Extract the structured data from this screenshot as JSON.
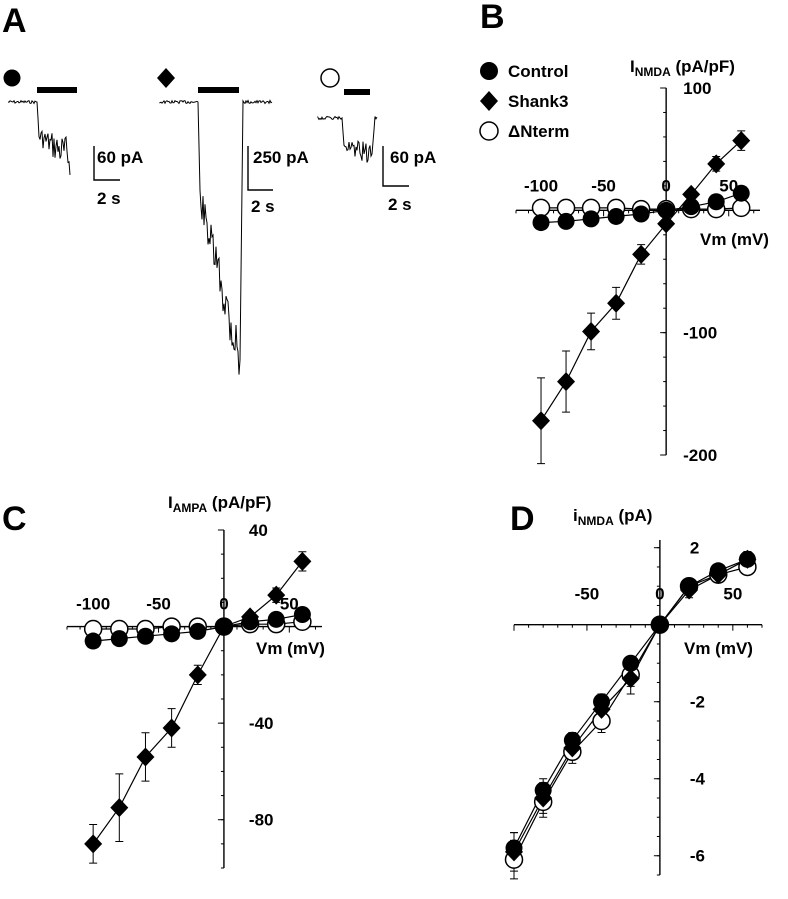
{
  "panels": {
    "A": "A",
    "B": "B",
    "C": "C",
    "D": "D"
  },
  "traces": [
    {
      "marker": "circle",
      "scale_current": "60 pA",
      "scale_time": "2 s",
      "current_amplitude": 60
    },
    {
      "marker": "diamond",
      "scale_current": "250 pA",
      "scale_time": "2 s",
      "current_amplitude": 250
    },
    {
      "marker": "open-circle",
      "scale_current": "60 pA",
      "scale_time": "2 s",
      "current_amplitude": 60
    }
  ],
  "legend": [
    {
      "label": "Control",
      "marker": "filled-circle"
    },
    {
      "label": "Shank3",
      "marker": "filled-diamond"
    },
    {
      "label": "ΔNterm",
      "marker": "open-circle"
    }
  ],
  "chart_data": [
    {
      "panel": "B",
      "type": "scatter",
      "ylabel_main": "I",
      "ylabel_sub": "NMDA",
      "ylabel_unit": "(pA/pF)",
      "xlabel": "Vm (mV)",
      "x_ticks": [
        "-100",
        "-50",
        "0",
        "50"
      ],
      "y_ticks": [
        "100",
        "-100",
        "-200"
      ],
      "xlim": [
        -120,
        75
      ],
      "ylim": [
        -200,
        100
      ],
      "series": [
        {
          "name": "Control",
          "marker": "filled-circle",
          "x": [
            -100,
            -80,
            -60,
            -40,
            -20,
            0,
            20,
            40,
            60
          ],
          "y": [
            -10,
            -9,
            -7,
            -5,
            -3,
            0,
            3,
            7,
            14
          ],
          "err": [
            2,
            2,
            2,
            2,
            1,
            1,
            1,
            2,
            3
          ]
        },
        {
          "name": "Shank3",
          "marker": "filled-diamond",
          "x": [
            -100,
            -80,
            -60,
            -40,
            -20,
            0,
            20,
            40,
            60
          ],
          "y": [
            -172,
            -140,
            -99,
            -76,
            -36,
            -11,
            13,
            38,
            57
          ],
          "err": [
            35,
            25,
            15,
            13,
            8,
            3,
            4,
            6,
            8
          ]
        },
        {
          "name": "ΔNterm",
          "marker": "open-circle",
          "x": [
            -100,
            -80,
            -60,
            -40,
            -20,
            0,
            20,
            40,
            60
          ],
          "y": [
            2,
            2,
            2,
            2,
            1,
            1,
            1,
            1,
            2
          ],
          "err": [
            1,
            1,
            1,
            1,
            1,
            1,
            1,
            1,
            1
          ]
        }
      ]
    },
    {
      "panel": "C",
      "type": "scatter",
      "ylabel_main": "I",
      "ylabel_sub": "AMPA",
      "ylabel_unit": "(pA/pF)",
      "xlabel": "Vm (mV)",
      "x_ticks": [
        "-100",
        "-50",
        "0",
        "50"
      ],
      "y_ticks": [
        "40",
        "-40",
        "-80"
      ],
      "xlim": [
        -120,
        75
      ],
      "ylim": [
        -100,
        40
      ],
      "series": [
        {
          "name": "Control",
          "marker": "filled-circle",
          "x": [
            -100,
            -80,
            -60,
            -40,
            -20,
            0,
            20,
            40,
            60
          ],
          "y": [
            -6,
            -5,
            -4,
            -3,
            -2,
            0,
            2,
            3,
            5
          ],
          "err": [
            1,
            1,
            1,
            1,
            1,
            1,
            1,
            1,
            1
          ]
        },
        {
          "name": "Shank3",
          "marker": "filled-diamond",
          "x": [
            -100,
            -80,
            -60,
            -40,
            -20,
            0,
            20,
            40,
            60
          ],
          "y": [
            -90,
            -75,
            -54,
            -42,
            -20,
            0,
            4,
            13,
            27
          ],
          "err": [
            8,
            14,
            10,
            8,
            4,
            1,
            2,
            3,
            4
          ]
        },
        {
          "name": "ΔNterm",
          "marker": "open-circle",
          "x": [
            -100,
            -80,
            -60,
            -40,
            -20,
            0,
            20,
            40,
            60
          ],
          "y": [
            -1,
            -1,
            -1,
            0,
            0,
            0,
            1,
            1,
            2
          ],
          "err": [
            1,
            1,
            1,
            1,
            1,
            1,
            1,
            1,
            1
          ]
        }
      ]
    },
    {
      "panel": "D",
      "type": "scatter",
      "ylabel_main": "i",
      "ylabel_sub": "NMDA",
      "ylabel_unit": "(pA)",
      "xlabel": "Vm (mV)",
      "x_ticks": [
        "-50",
        "0",
        "50"
      ],
      "y_ticks": [
        "2",
        "-2",
        "-4",
        "-6"
      ],
      "xlim": [
        -100,
        70
      ],
      "ylim": [
        -6.5,
        2.2
      ],
      "series": [
        {
          "name": "Control",
          "marker": "filled-circle",
          "x": [
            -100,
            -80,
            -60,
            -40,
            -20,
            0,
            20,
            40,
            60
          ],
          "y": [
            -5.8,
            -4.3,
            -3.0,
            -2.0,
            -1.0,
            0,
            1.0,
            1.4,
            1.7
          ],
          "err": [
            0.4,
            0.3,
            0.2,
            0.2,
            0.1,
            0.1,
            0.1,
            0.1,
            0.1
          ]
        },
        {
          "name": "Shank3",
          "marker": "filled-diamond",
          "x": [
            -100,
            -80,
            -60,
            -40,
            -20,
            0,
            20,
            40,
            60
          ],
          "y": [
            -5.9,
            -4.5,
            -3.2,
            -2.2,
            -1.4,
            0,
            0.9,
            1.3,
            1.7
          ],
          "err": [
            0.5,
            0.4,
            0.3,
            0.3,
            0.4,
            0.1,
            0.2,
            0.2,
            0.2
          ]
        },
        {
          "name": "ΔNterm",
          "marker": "open-circle",
          "x": [
            -100,
            -80,
            -60,
            -40,
            -20,
            0,
            20,
            40,
            60
          ],
          "y": [
            -6.1,
            -4.6,
            -3.3,
            -2.5,
            -1.3,
            0,
            1.0,
            1.3,
            1.5
          ],
          "err": [
            0.5,
            0.4,
            0.3,
            0.3,
            0.3,
            0.1,
            0.2,
            0.2,
            0.2
          ]
        }
      ]
    }
  ]
}
